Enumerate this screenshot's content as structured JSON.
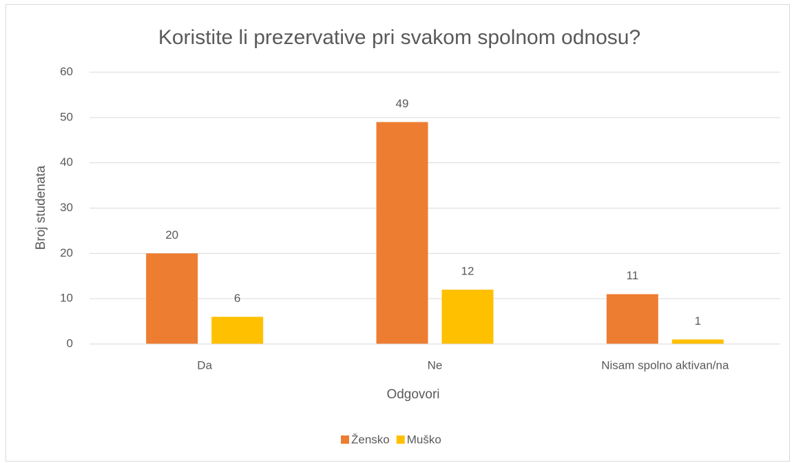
{
  "chart_data": {
    "type": "bar",
    "title": "Koristite li prezervative pri svakom spolnom odnosu?",
    "x_label": "Odgovori",
    "y_label": "Broj studenata",
    "categories": [
      "Da",
      "Ne",
      "Nisam spolno aktivan/na"
    ],
    "series": [
      {
        "name": "Žensko",
        "color": "#ed7d31",
        "values": [
          20,
          49,
          11
        ]
      },
      {
        "name": "Muško",
        "color": "#ffc000",
        "values": [
          6,
          12,
          1
        ]
      }
    ],
    "ylim": [
      0,
      60
    ],
    "yticks": [
      0,
      10,
      20,
      30,
      40,
      50,
      60
    ],
    "grid": true,
    "legend": "bottom"
  }
}
